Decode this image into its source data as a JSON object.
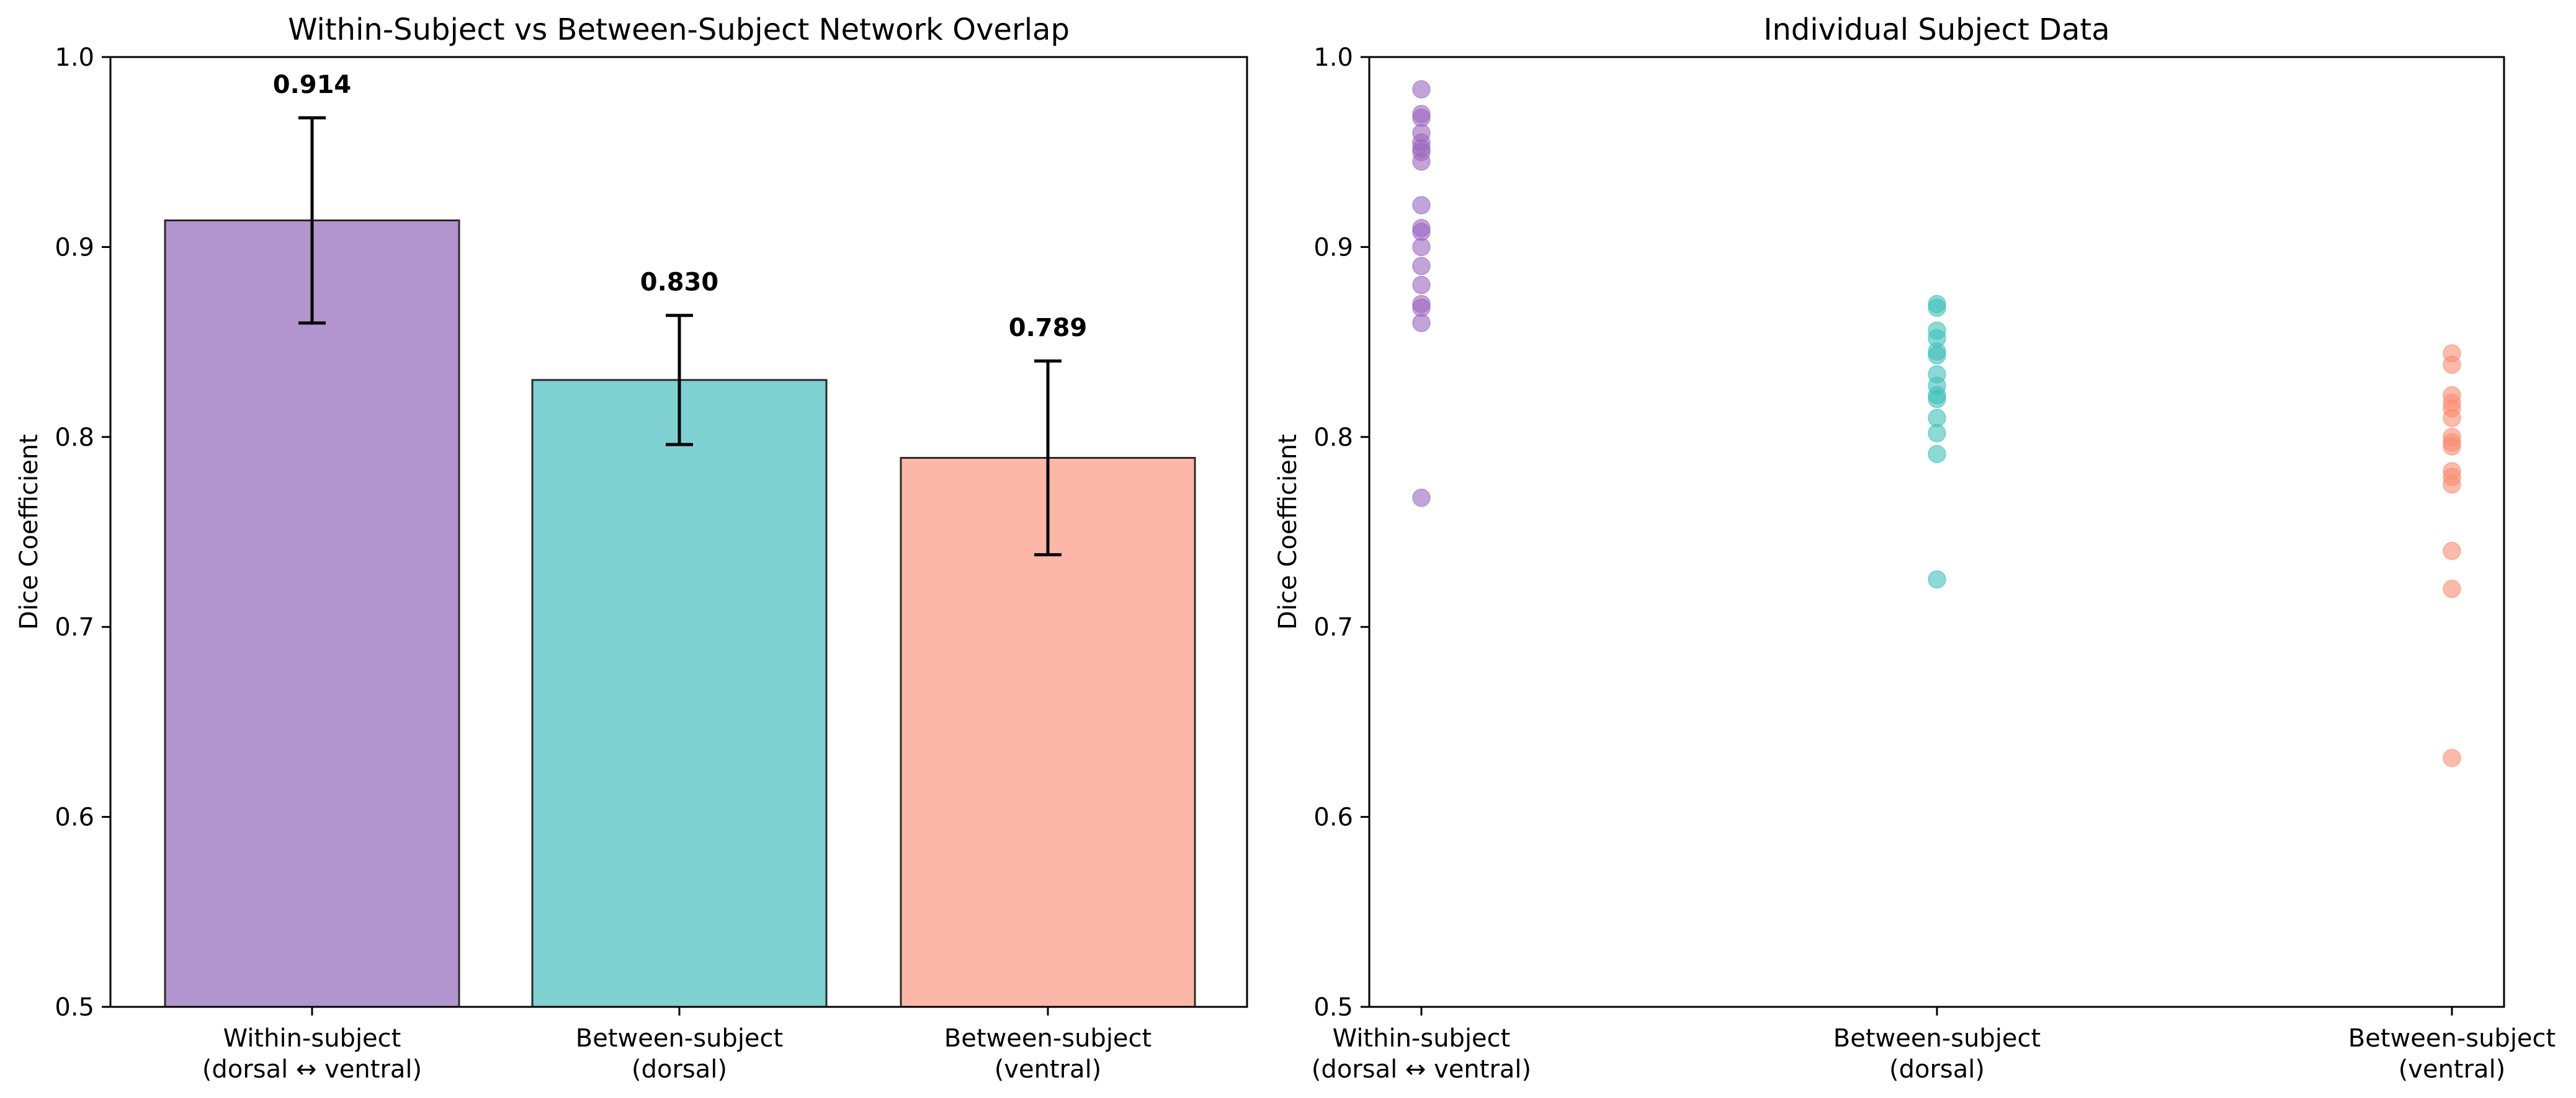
{
  "chart_data": [
    {
      "type": "bar",
      "title": "Within-Subject vs Between-Subject Network Overlap",
      "xlabel": "",
      "ylabel": "Dice Coefficient",
      "ylim": [
        0.5,
        1.0
      ],
      "yticks": [
        "0.5",
        "0.6",
        "0.7",
        "0.8",
        "0.9",
        "1.0"
      ],
      "categories": [
        [
          "Within-subject",
          "(dorsal ↔ ventral)"
        ],
        [
          "Between-subject",
          "(dorsal)"
        ],
        [
          "Between-subject",
          "(ventral)"
        ]
      ],
      "values": [
        0.914,
        0.83,
        0.789
      ],
      "errors": [
        0.054,
        0.034,
        0.051
      ],
      "value_labels": [
        "0.914",
        "0.830",
        "0.789"
      ],
      "colors": [
        "#b294cf",
        "#80d1d1",
        "#fdb7a8"
      ],
      "grid": false
    },
    {
      "type": "scatter",
      "title": "Individual Subject Data",
      "xlabel": "",
      "ylabel": "Dice Coefficient",
      "ylim": [
        0.5,
        1.0
      ],
      "yticks": [
        "0.5",
        "0.6",
        "0.7",
        "0.8",
        "0.9",
        "1.0"
      ],
      "categories": [
        [
          "Within-subject",
          "(dorsal ↔ ventral)"
        ],
        [
          "Between-subject",
          "(dorsal)"
        ],
        [
          "Between-subject",
          "(ventral)"
        ]
      ],
      "colors": [
        "#9b68c0",
        "#40c0bb",
        "#fa8c73"
      ],
      "series": [
        {
          "values": [
            0.983,
            0.97,
            0.968,
            0.96,
            0.955,
            0.952,
            0.95,
            0.945,
            0.922,
            0.91,
            0.908,
            0.9,
            0.89,
            0.88,
            0.87,
            0.868,
            0.86,
            0.768
          ]
        },
        {
          "values": [
            0.87,
            0.868,
            0.856,
            0.852,
            0.845,
            0.843,
            0.833,
            0.827,
            0.822,
            0.82,
            0.81,
            0.802,
            0.791,
            0.725
          ]
        },
        {
          "values": [
            0.844,
            0.838,
            0.822,
            0.818,
            0.815,
            0.81,
            0.8,
            0.797,
            0.795,
            0.782,
            0.779,
            0.775,
            0.74,
            0.72,
            0.631
          ]
        }
      ],
      "grid": false
    }
  ]
}
